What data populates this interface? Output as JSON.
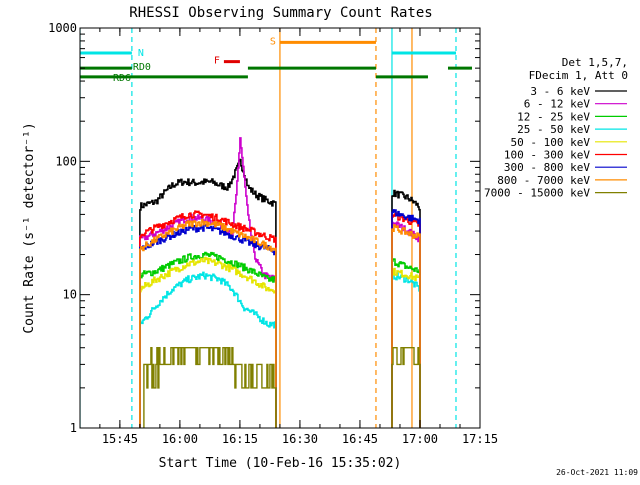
{
  "chart_data": {
    "type": "line",
    "title": "RHESSI Observing Summary Count Rates",
    "xlabel": "Start Time (10-Feb-16 15:35:02)",
    "ylabel": "Count Rate (s⁻¹ detector⁻¹)",
    "yscale": "log",
    "ylim": [
      1,
      1000
    ],
    "xlim": [
      "15:35:02",
      "17:15:00"
    ],
    "x_ticks": [
      "15:45",
      "16:00",
      "16:15",
      "16:30",
      "16:45",
      "17:00",
      "17:15"
    ],
    "y_ticks": [
      "1",
      "10",
      "100",
      "1000"
    ],
    "timestamp": "26-Oct-2021 11:09",
    "legend_header": [
      "Det 1,5,7,",
      "FDecim 1, Att 0"
    ],
    "legend_position": "right",
    "series": [
      {
        "name": "3 - 6 keV",
        "color": "#000000",
        "segments": [
          {
            "x": [
              "15:50",
              "15:52",
              "15:54",
              "15:56",
              "15:58",
              "16:00",
              "16:02",
              "16:04",
              "16:06",
              "16:08",
              "16:10",
              "16:12",
              "16:14",
              "16:15",
              "16:16",
              "16:17",
              "16:19",
              "16:21",
              "16:23",
              "16:24"
            ],
            "y": [
              46,
              48,
              50,
              58,
              66,
              70,
              70,
              69,
              70,
              70,
              66,
              64,
              85,
              100,
              82,
              64,
              56,
              52,
              49,
              48
            ]
          },
          {
            "x": [
              "16:53",
              "16:55",
              "16:57",
              "16:59",
              "17:00"
            ],
            "y": [
              58,
              56,
              53,
              48,
              44
            ]
          }
        ]
      },
      {
        "name": "6 - 12 keV",
        "color": "#cc00cc",
        "segments": [
          {
            "x": [
              "15:50",
              "15:54",
              "15:58",
              "16:02",
              "16:06",
              "16:10",
              "16:13",
              "16:14",
              "16:15",
              "16:16",
              "16:17",
              "16:18",
              "16:19",
              "16:21",
              "16:24"
            ],
            "y": [
              26,
              29,
              33,
              38,
              37,
              34,
              28,
              55,
              150,
              75,
              38,
              25,
              18,
              14,
              13
            ]
          },
          {
            "x": [
              "16:53",
              "16:57",
              "17:00"
            ],
            "y": [
              35,
              30,
              26
            ]
          }
        ]
      },
      {
        "name": "12 - 25 keV",
        "color": "#00cc00",
        "segments": [
          {
            "x": [
              "15:50",
              "15:54",
              "15:58",
              "16:02",
              "16:06",
              "16:10",
              "16:14",
              "16:18",
              "16:22",
              "16:24"
            ],
            "y": [
              14,
              15,
              17,
              19,
              20,
              19,
              17,
              15,
              13,
              13
            ]
          },
          {
            "x": [
              "16:53",
              "16:57",
              "17:00"
            ],
            "y": [
              18,
              16,
              15
            ]
          }
        ]
      },
      {
        "name": "25 - 50 keV",
        "color": "#00e5e5",
        "segments": [
          {
            "x": [
              "15:50",
              "15:52",
              "15:55",
              "15:58",
              "16:02",
              "16:06",
              "16:10",
              "16:13",
              "16:16",
              "16:19",
              "16:22",
              "16:24"
            ],
            "y": [
              6,
              7,
              9,
              11,
              13,
              14,
              13,
              11,
              8,
              7,
              6,
              6
            ]
          },
          {
            "x": [
              "16:53",
              "16:57",
              "17:00"
            ],
            "y": [
              14,
              13,
              11
            ]
          }
        ]
      },
      {
        "name": "50 - 100 keV",
        "color": "#e5e500",
        "segments": [
          {
            "x": [
              "15:50",
              "15:54",
              "15:58",
              "16:02",
              "16:06",
              "16:10",
              "16:14",
              "16:18",
              "16:22",
              "16:24"
            ],
            "y": [
              11,
              13,
              15,
              17,
              18,
              17,
              15,
              13,
              11,
              11
            ]
          },
          {
            "x": [
              "16:53",
              "16:57",
              "17:00"
            ],
            "y": [
              15,
              14,
              13
            ]
          }
        ]
      },
      {
        "name": "100 - 300 keV",
        "color": "#ff0000",
        "segments": [
          {
            "x": [
              "15:50",
              "15:54",
              "15:58",
              "16:02",
              "16:06",
              "16:10",
              "16:14",
              "16:18",
              "16:22",
              "16:24"
            ],
            "y": [
              28,
              32,
              36,
              40,
              40,
              37,
              33,
              30,
              27,
              26
            ]
          },
          {
            "x": [
              "16:53",
              "16:57",
              "17:00"
            ],
            "y": [
              40,
              36,
              33
            ]
          }
        ]
      },
      {
        "name": "300 - 800 keV",
        "color": "#0000cc",
        "segments": [
          {
            "x": [
              "15:50",
              "15:54",
              "15:58",
              "16:02",
              "16:06",
              "16:10",
              "16:14",
              "16:18",
              "16:22",
              "16:24"
            ],
            "y": [
              22,
              25,
              28,
              31,
              32,
              30,
              27,
              24,
              22,
              21
            ]
          },
          {
            "x": [
              "16:53",
              "16:57",
              "17:00"
            ],
            "y": [
              42,
              38,
              36
            ]
          }
        ]
      },
      {
        "name": "800 - 7000 keV",
        "color": "#ff8c00",
        "segments": [
          {
            "x": [
              "15:50",
              "15:54",
              "15:58",
              "16:02",
              "16:06",
              "16:10",
              "16:14",
              "16:18",
              "16:22",
              "16:24"
            ],
            "y": [
              22,
              26,
              30,
              34,
              35,
              33,
              29,
              26,
              23,
              22
            ]
          },
          {
            "x": [
              "16:53",
              "16:57",
              "17:00"
            ],
            "y": [
              32,
              29,
              27
            ]
          }
        ]
      },
      {
        "name": "7000 - 15000 keV",
        "color": "#808000",
        "segments": [
          {
            "x": [
              "15:51",
              "15:54",
              "15:57",
              "16:00",
              "16:03",
              "16:06",
              "16:09",
              "16:12",
              "16:14",
              "16:16",
              "16:18",
              "16:20",
              "16:22",
              "16:24"
            ],
            "y": [
              1.8,
              2.0,
              2.3,
              2.6,
              3.0,
              3.2,
              3.0,
              2.6,
              2.2,
              1.8,
              1.6,
              1.5,
              1.4,
              1.4
            ]
          },
          {
            "x": [
              "16:53",
              "16:56",
              "16:59",
              "17:00"
            ],
            "y": [
              3.0,
              2.8,
              2.6,
              2.4
            ]
          }
        ]
      }
    ],
    "flags": [
      {
        "label": "N",
        "color": "#00e5e5",
        "y": 650,
        "segments": [
          [
            "15:35:02",
            "15:48"
          ],
          [
            "16:53",
            "17:09"
          ]
        ]
      },
      {
        "label": "RD0",
        "color": "#007700",
        "y": 500,
        "segments": [
          [
            "15:35:02",
            "15:48"
          ],
          [
            "16:17",
            "16:49"
          ],
          [
            "17:07",
            "17:13"
          ]
        ]
      },
      {
        "label": "RD6",
        "color": "#007700",
        "y": 430,
        "segments": [
          [
            "15:35:02",
            "16:17"
          ],
          [
            "16:49",
            "17:02"
          ]
        ]
      },
      {
        "label": "F",
        "color": "#e00000",
        "y": 560,
        "segments": [
          [
            "16:11",
            "16:15"
          ]
        ]
      },
      {
        "label": "S",
        "color": "#ff8c00",
        "y": 780,
        "segments": [
          [
            "16:25",
            "16:49"
          ]
        ]
      }
    ],
    "vertical_lines": [
      {
        "x": "15:35:02",
        "color": "#00e5e5",
        "dashed": false
      },
      {
        "x": "15:48",
        "color": "#00e5e5",
        "dashed": true
      },
      {
        "x": "16:25",
        "color": "#ff8c00",
        "dashed": false
      },
      {
        "x": "16:49",
        "color": "#ff8c00",
        "dashed": true
      },
      {
        "x": "16:53",
        "color": "#00e5e5",
        "dashed": false
      },
      {
        "x": "16:58",
        "color": "#ff8c00",
        "dashed": false
      },
      {
        "x": "17:09",
        "color": "#00e5e5",
        "dashed": true
      }
    ]
  }
}
